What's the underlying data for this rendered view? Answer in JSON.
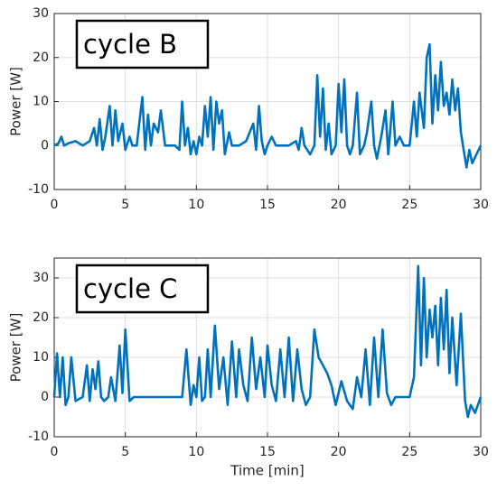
{
  "chart_data": [
    {
      "type": "line",
      "annotation": "cycle B",
      "ylabel": "Power [W]",
      "xlim": [
        0,
        30
      ],
      "xticks": [
        0,
        5,
        10,
        15,
        20,
        25,
        30
      ],
      "ylim": [
        -10,
        30
      ],
      "yticks": [
        -10,
        0,
        10,
        20,
        30
      ],
      "grid": true,
      "series": [
        {
          "color": "#0072bd",
          "x": [
            0,
            0.3,
            0.5,
            0.7,
            1,
            1.5,
            2,
            2.5,
            2.8,
            3,
            3.2,
            3.4,
            3.6,
            3.9,
            4.1,
            4.3,
            4.5,
            4.8,
            5,
            5.3,
            5.5,
            5.8,
            6.2,
            6.4,
            6.6,
            6.8,
            7,
            7.3,
            7.5,
            7.8,
            8.5,
            8.8,
            9,
            9.2,
            9.4,
            9.6,
            9.8,
            10,
            10.2,
            10.4,
            10.6,
            10.8,
            11,
            11.2,
            11.4,
            11.6,
            11.8,
            12,
            12.3,
            12.5,
            13,
            13.5,
            14,
            14.2,
            14.4,
            14.6,
            14.8,
            15,
            15.3,
            15.6,
            16,
            16.5,
            17,
            17.2,
            17.4,
            17.6,
            18,
            18.3,
            18.5,
            18.7,
            18.9,
            19.1,
            19.3,
            19.5,
            19.8,
            20,
            20.2,
            20.4,
            20.6,
            20.8,
            21,
            21.3,
            21.5,
            21.8,
            22,
            22.3,
            22.5,
            22.7,
            23,
            23.3,
            23.5,
            23.8,
            24,
            24.3,
            24.6,
            25,
            25.3,
            25.5,
            25.7,
            26,
            26.2,
            26.4,
            26.6,
            26.8,
            27,
            27.2,
            27.4,
            27.6,
            27.8,
            28,
            28.2,
            28.4,
            28.6,
            28.8,
            29,
            29.2,
            29.4,
            29.7,
            30
          ],
          "values": [
            0,
            0.5,
            2,
            0,
            0.5,
            1,
            0,
            1,
            4,
            0,
            6,
            -1,
            2,
            9,
            0,
            8,
            1,
            5,
            -1,
            2,
            0,
            0,
            11,
            -1,
            7,
            0,
            5,
            3,
            8,
            0,
            0,
            -1,
            10,
            0,
            4,
            -2,
            1,
            -2,
            2,
            0,
            9,
            2,
            11,
            -1,
            10,
            5,
            8,
            -2,
            3,
            0,
            0,
            1,
            5,
            -1,
            9,
            1,
            -2,
            0,
            2,
            0,
            0,
            0,
            1,
            -1,
            4,
            0,
            -2,
            0,
            16,
            2,
            13,
            -1,
            5,
            -2,
            0,
            14,
            3,
            15,
            0,
            -2,
            0,
            12,
            -2,
            0,
            3,
            10,
            0,
            -3,
            2,
            8,
            -2,
            10,
            0,
            2,
            0,
            0,
            10,
            2,
            12,
            4,
            20,
            23,
            5,
            16,
            8,
            19,
            9,
            12,
            7,
            15,
            8,
            13,
            3,
            -1,
            -5,
            -1,
            -4,
            -2,
            0
          ]
        }
      ]
    },
    {
      "type": "line",
      "annotation": "cycle C",
      "ylabel": "Power [W]",
      "xlabel": "Time [min]",
      "xlim": [
        0,
        30
      ],
      "xticks": [
        0,
        5,
        10,
        15,
        20,
        25,
        30
      ],
      "ylim": [
        -10,
        35
      ],
      "yticks": [
        -10,
        0,
        10,
        20,
        30
      ],
      "grid": true,
      "series": [
        {
          "color": "#0072bd",
          "x": [
            0,
            0.2,
            0.4,
            0.6,
            0.8,
            1,
            1.2,
            1.5,
            2,
            2.3,
            2.5,
            2.7,
            2.9,
            3.1,
            3.3,
            3.5,
            3.8,
            4,
            4.3,
            4.6,
            4.8,
            5,
            5.3,
            5.6,
            6,
            6.5,
            7,
            7.5,
            8,
            8.5,
            9,
            9.3,
            9.6,
            9.8,
            10,
            10.2,
            10.4,
            10.6,
            10.8,
            11,
            11.3,
            11.6,
            11.9,
            12.2,
            12.5,
            12.8,
            13,
            13.3,
            13.6,
            13.9,
            14.2,
            14.5,
            14.8,
            15,
            15.3,
            15.6,
            15.9,
            16.2,
            16.5,
            16.8,
            17.1,
            17.4,
            17.7,
            18,
            18.3,
            18.6,
            18.9,
            19.2,
            19.5,
            19.8,
            20.2,
            20.6,
            21,
            21.3,
            21.6,
            21.9,
            22.2,
            22.5,
            22.8,
            23.1,
            23.4,
            23.7,
            24,
            24.5,
            25,
            25.3,
            25.6,
            25.8,
            26,
            26.2,
            26.4,
            26.6,
            26.8,
            27,
            27.2,
            27.4,
            27.6,
            27.8,
            28,
            28.3,
            28.6,
            28.9,
            29.1,
            29.3,
            29.6,
            30
          ],
          "values": [
            0,
            11,
            0,
            10,
            -2,
            0,
            10,
            -1,
            0,
            8,
            -1,
            7,
            2,
            9,
            0,
            -1,
            0,
            5,
            -1,
            13,
            1,
            17,
            -1,
            0,
            0,
            0,
            0,
            0,
            0,
            0,
            0,
            12,
            -2,
            3,
            0,
            10,
            -1,
            0,
            12,
            0,
            18,
            2,
            10,
            -2,
            14,
            0,
            12,
            3,
            -1,
            15,
            2,
            10,
            0,
            13,
            3,
            -1,
            12,
            0,
            15,
            -1,
            12,
            2,
            -2,
            0,
            17,
            10,
            8,
            6,
            3,
            -2,
            4,
            -1,
            -3,
            5,
            0,
            12,
            -2,
            15,
            0,
            17,
            1,
            -2,
            0,
            0,
            0,
            5,
            33,
            8,
            30,
            10,
            22,
            15,
            23,
            8,
            25,
            12,
            27,
            6,
            20,
            3,
            21,
            -1,
            -5,
            -2,
            -4,
            0
          ]
        }
      ]
    }
  ]
}
